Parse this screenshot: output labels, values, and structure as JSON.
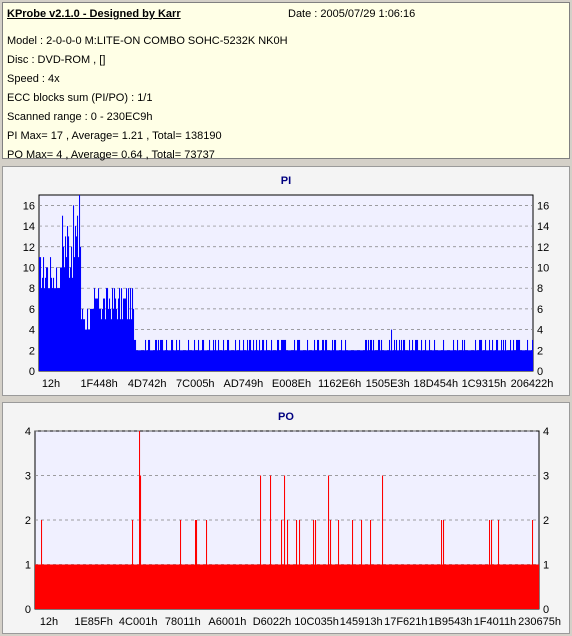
{
  "header": {
    "title": "KProbe v2.1.0 - Designed by Karr",
    "date": "Date : 2005/07/29 1:06:16",
    "lines": [
      "Model : 2-0-0-0 M:LITE-ON COMBO SOHC-5232K NK0H",
      "Disc : DVD-ROM ,  []",
      "Speed : 4x",
      "ECC blocks sum (PI/PO) : 1/1",
      "Scanned range : 0 - 230EC9h",
      "PI Max= 17 , Average= 1.21 , Total= 138190",
      "PO Max= 4 , Average= 0.64 , Total= 73737"
    ]
  },
  "colors": {
    "pi": "#0000ff",
    "po": "#ff0000",
    "plot_bg": "#f0f0ff"
  },
  "chart_data": [
    {
      "type": "bar",
      "title": "PI",
      "ylim": [
        0,
        17
      ],
      "yticks": [
        0,
        2,
        4,
        6,
        8,
        10,
        12,
        14,
        16
      ],
      "xticks": [
        "12h",
        "1F448h",
        "4D742h",
        "7C005h",
        "AD749h",
        "E008Eh",
        "1162E6h",
        "1505E3h",
        "18D454h",
        "1C9315h",
        "206422h"
      ],
      "max": 17,
      "average": 1.21,
      "grid": true
    },
    {
      "type": "bar",
      "title": "PO",
      "ylim": [
        0,
        4
      ],
      "yticks": [
        0,
        1,
        2,
        3,
        4
      ],
      "xticks": [
        "12h",
        "1E85Fh",
        "4C001h",
        "78011h",
        "A6001h",
        "D6022h",
        "10C035h",
        "145913h",
        "17F621h",
        "1B9543h",
        "1F4011h",
        "230675h"
      ],
      "max": 4,
      "average": 0.64,
      "grid": true
    }
  ]
}
